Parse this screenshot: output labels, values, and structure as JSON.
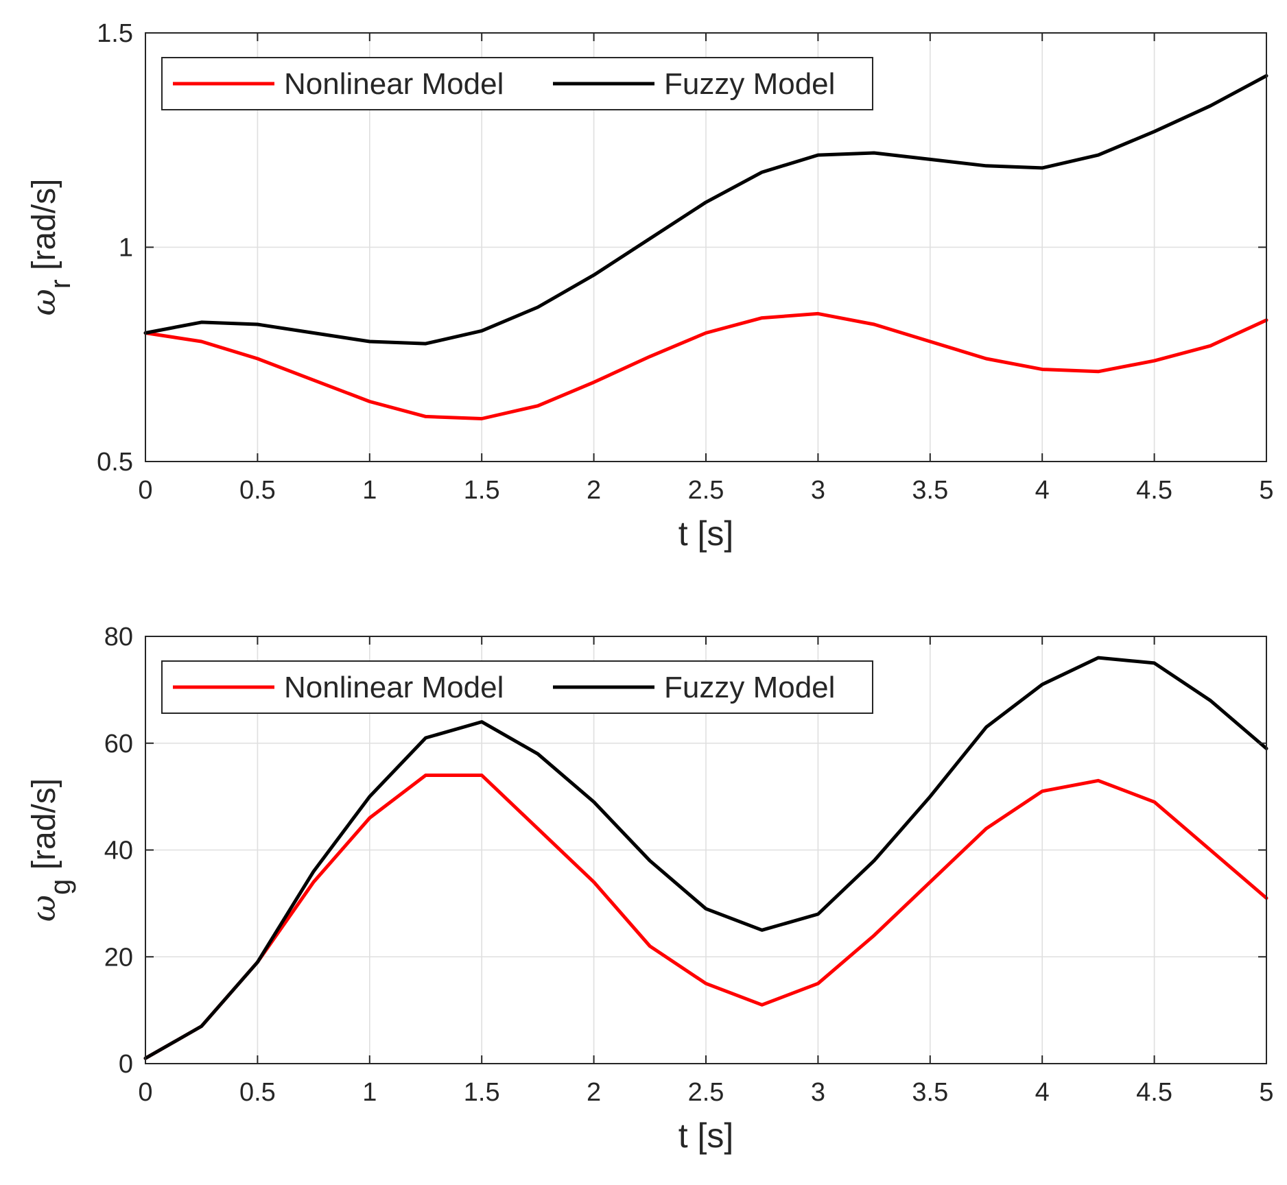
{
  "chart_data": [
    {
      "type": "line",
      "title": "",
      "xlabel": "t [s]",
      "ylabel": {
        "symbol": "ω",
        "subscript": "r",
        "unit": "[rad/s]"
      },
      "xlim": [
        0,
        5
      ],
      "ylim": [
        0.5,
        1.5
      ],
      "xticks": [
        0,
        0.5,
        1,
        1.5,
        2,
        2.5,
        3,
        3.5,
        4,
        4.5,
        5
      ],
      "xtick_labels": [
        "0",
        "0.5",
        "1",
        "1.5",
        "2",
        "2.5",
        "3",
        "3.5",
        "4",
        "4.5",
        "5"
      ],
      "yticks": [
        0.5,
        1,
        1.5
      ],
      "ytick_labels": [
        "0.5",
        "1",
        "1.5"
      ],
      "grid": true,
      "legend": "top-left",
      "x": [
        0,
        0.25,
        0.5,
        0.75,
        1,
        1.25,
        1.5,
        1.75,
        2,
        2.25,
        2.5,
        2.75,
        3,
        3.25,
        3.5,
        3.75,
        4,
        4.25,
        4.5,
        4.75,
        5
      ],
      "series": [
        {
          "name": "Nonlinear Model",
          "color": "#ff0000",
          "values": [
            0.8,
            0.78,
            0.74,
            0.69,
            0.64,
            0.605,
            0.6,
            0.63,
            0.685,
            0.745,
            0.8,
            0.835,
            0.845,
            0.82,
            0.78,
            0.74,
            0.715,
            0.71,
            0.735,
            0.77,
            0.83
          ]
        },
        {
          "name": "Fuzzy Model",
          "color": "#000000",
          "values": [
            0.8,
            0.825,
            0.82,
            0.8,
            0.78,
            0.775,
            0.805,
            0.86,
            0.935,
            1.02,
            1.105,
            1.175,
            1.215,
            1.22,
            1.205,
            1.19,
            1.185,
            1.215,
            1.27,
            1.33,
            1.4
          ]
        }
      ]
    },
    {
      "type": "line",
      "title": "",
      "xlabel": "t [s]",
      "ylabel": {
        "symbol": "ω",
        "subscript": "g",
        "unit": "[rad/s]"
      },
      "xlim": [
        0,
        5
      ],
      "ylim": [
        0,
        80
      ],
      "xticks": [
        0,
        0.5,
        1,
        1.5,
        2,
        2.5,
        3,
        3.5,
        4,
        4.5,
        5
      ],
      "xtick_labels": [
        "0",
        "0.5",
        "1",
        "1.5",
        "2",
        "2.5",
        "3",
        "3.5",
        "4",
        "4.5",
        "5"
      ],
      "yticks": [
        0,
        20,
        40,
        60,
        80
      ],
      "ytick_labels": [
        "0",
        "20",
        "40",
        "60",
        "80"
      ],
      "grid": true,
      "legend": "top-left",
      "x": [
        0,
        0.25,
        0.5,
        0.75,
        1,
        1.25,
        1.5,
        1.75,
        2,
        2.25,
        2.5,
        2.75,
        3,
        3.25,
        3.5,
        3.75,
        4,
        4.25,
        4.5,
        4.75,
        5
      ],
      "series": [
        {
          "name": "Nonlinear Model",
          "color": "#ff0000",
          "values": [
            1,
            7,
            19,
            34,
            46,
            54,
            54,
            44,
            34,
            22,
            15,
            11,
            15,
            24,
            34,
            44,
            51,
            53,
            49,
            40,
            31
          ]
        },
        {
          "name": "Fuzzy Model",
          "color": "#000000",
          "values": [
            1,
            7,
            19,
            36,
            50,
            61,
            64,
            58,
            49,
            38,
            29,
            25,
            28,
            38,
            50,
            63,
            71,
            76,
            75,
            68,
            59
          ]
        }
      ]
    }
  ]
}
